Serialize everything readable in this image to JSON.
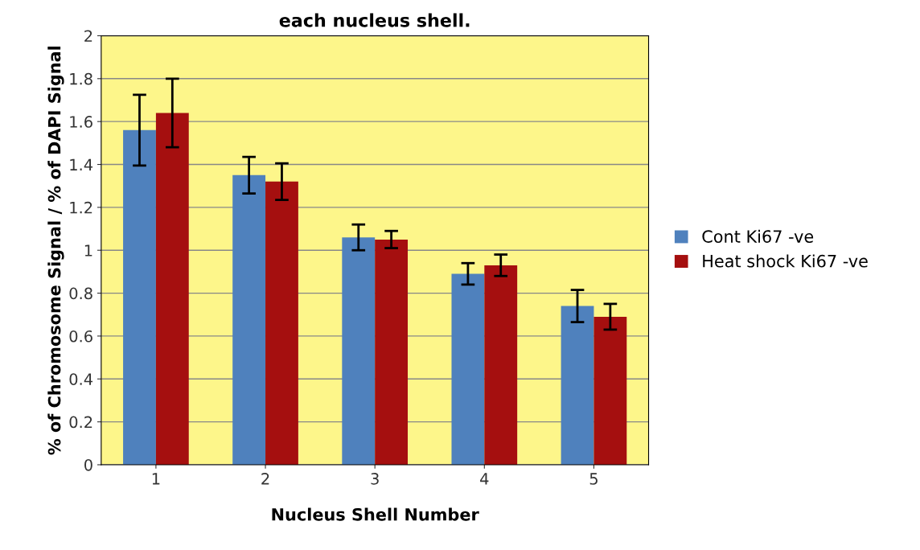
{
  "chart_data": {
    "type": "bar",
    "title": "each nucleus shell.",
    "xlabel": "Nucleus Shell Number",
    "ylabel": "% of Chromosome Signal / % of DAPI Signal",
    "categories": [
      "1",
      "2",
      "3",
      "4",
      "5"
    ],
    "series": [
      {
        "name": "Cont Ki67 -ve",
        "color": "#4f81bd",
        "values": [
          1.56,
          1.35,
          1.06,
          0.89,
          0.74
        ],
        "errors": [
          0.165,
          0.085,
          0.06,
          0.05,
          0.075
        ]
      },
      {
        "name": "Heat shock Ki67 -ve",
        "color": "#a50f0f",
        "values": [
          1.64,
          1.32,
          1.05,
          0.93,
          0.69
        ],
        "errors": [
          0.16,
          0.085,
          0.04,
          0.05,
          0.06
        ]
      }
    ],
    "ylim": [
      0,
      2
    ],
    "yticks": [
      0,
      0.2,
      0.4,
      0.6,
      0.8,
      1,
      1.2,
      1.4,
      1.6,
      1.8,
      2
    ],
    "grid": "y",
    "legend": "right"
  }
}
